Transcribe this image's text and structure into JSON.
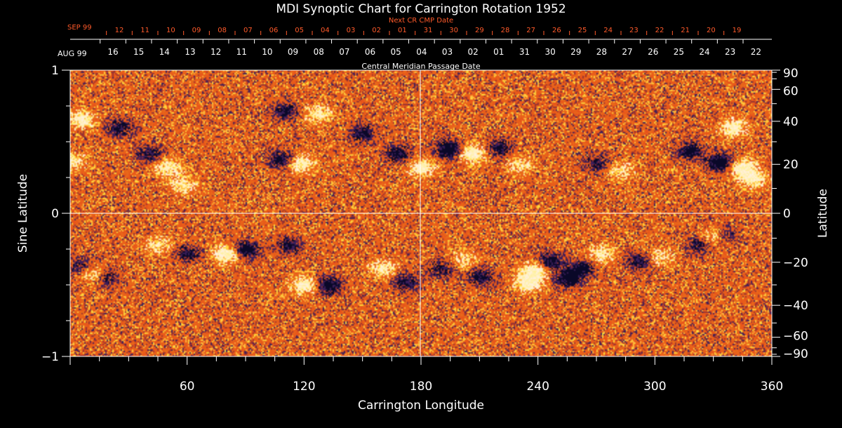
{
  "chart_data": {
    "type": "heatmap",
    "title": "MDI Synoptic Chart for Carrington Rotation 1952",
    "xlabel": "Carrington Longitude",
    "ylabel_left": "Sine Latitude",
    "ylabel_right": "Latitude",
    "xlim": [
      0,
      360
    ],
    "ylim": [
      -1,
      1
    ],
    "x_ticks": [
      60,
      120,
      180,
      240,
      300,
      360
    ],
    "y_ticks_left": [
      -1,
      0,
      1
    ],
    "y_ticks_left_labels": [
      "−1",
      "0",
      "1"
    ],
    "y_ticks_right": [
      90,
      60,
      40,
      20,
      0,
      -20,
      -40,
      -60,
      -90
    ],
    "y_ticks_right_labels": [
      "90",
      "60",
      "40",
      "20",
      "0",
      "−20",
      "−40",
      "−60",
      "−90"
    ],
    "grid_lines": {
      "longitude": 180,
      "sine_latitude": 0
    },
    "top_axis": {
      "title": "Central Meridian Passage Date",
      "start_label": "AUG 99",
      "dates": [
        "16",
        "15",
        "14",
        "13",
        "12",
        "11",
        "10",
        "09",
        "08",
        "07",
        "06",
        "05",
        "04",
        "03",
        "02",
        "01",
        "31",
        "30",
        "29",
        "28",
        "27",
        "26",
        "25",
        "24",
        "23",
        "22"
      ]
    },
    "next_axis": {
      "title": "Next CR CMP Date",
      "start_label": "SEP 99",
      "dates": [
        "12",
        "11",
        "10",
        "09",
        "08",
        "07",
        "06",
        "05",
        "04",
        "03",
        "02",
        "01",
        "31",
        "30",
        "29",
        "28",
        "27",
        "26",
        "25",
        "24",
        "23",
        "22",
        "21",
        "20",
        "19"
      ]
    },
    "colors": {
      "background": "#000000",
      "field_base": "#e8501a",
      "positive_polarity": "#fff5b0",
      "negative_polarity": "#101040",
      "next_axis_text": "#ff5a2a",
      "axis": "#ffffff"
    },
    "regions": [
      {
        "polarity": "positive",
        "lon": 5,
        "sinlat": 0.66,
        "strength": 1.0
      },
      {
        "polarity": "negative",
        "lon": 25,
        "sinlat": 0.6,
        "strength": 0.9
      },
      {
        "polarity": "positive",
        "lon": 0,
        "sinlat": 0.36,
        "strength": 0.9
      },
      {
        "polarity": "positive",
        "lon": 50,
        "sinlat": 0.32,
        "strength": 0.9
      },
      {
        "polarity": "positive",
        "lon": 58,
        "sinlat": 0.2,
        "strength": 0.8
      },
      {
        "polarity": "negative",
        "lon": 40,
        "sinlat": 0.42,
        "strength": 0.8
      },
      {
        "polarity": "negative",
        "lon": 110,
        "sinlat": 0.72,
        "strength": 0.9
      },
      {
        "polarity": "positive",
        "lon": 127,
        "sinlat": 0.7,
        "strength": 0.9
      },
      {
        "polarity": "negative",
        "lon": 108,
        "sinlat": 0.38,
        "strength": 1.0
      },
      {
        "polarity": "positive",
        "lon": 118,
        "sinlat": 0.35,
        "strength": 1.0
      },
      {
        "polarity": "negative",
        "lon": 150,
        "sinlat": 0.56,
        "strength": 0.9
      },
      {
        "polarity": "negative",
        "lon": 168,
        "sinlat": 0.42,
        "strength": 1.0
      },
      {
        "polarity": "positive",
        "lon": 180,
        "sinlat": 0.32,
        "strength": 1.0
      },
      {
        "polarity": "negative",
        "lon": 194,
        "sinlat": 0.45,
        "strength": 1.3
      },
      {
        "polarity": "positive",
        "lon": 206,
        "sinlat": 0.42,
        "strength": 1.2
      },
      {
        "polarity": "negative",
        "lon": 220,
        "sinlat": 0.46,
        "strength": 0.9
      },
      {
        "polarity": "positive",
        "lon": 230,
        "sinlat": 0.34,
        "strength": 0.7
      },
      {
        "polarity": "negative",
        "lon": 270,
        "sinlat": 0.35,
        "strength": 0.8
      },
      {
        "polarity": "positive",
        "lon": 282,
        "sinlat": 0.3,
        "strength": 0.7
      },
      {
        "polarity": "negative",
        "lon": 318,
        "sinlat": 0.44,
        "strength": 1.1
      },
      {
        "polarity": "positive",
        "lon": 340,
        "sinlat": 0.6,
        "strength": 1.0
      },
      {
        "polarity": "negative",
        "lon": 333,
        "sinlat": 0.36,
        "strength": 1.3
      },
      {
        "polarity": "positive",
        "lon": 345,
        "sinlat": 0.32,
        "strength": 1.2
      },
      {
        "polarity": "positive",
        "lon": 350,
        "sinlat": 0.24,
        "strength": 1.0
      },
      {
        "polarity": "positive",
        "lon": 80,
        "sinlat": -0.28,
        "strength": 1.2
      },
      {
        "polarity": "negative",
        "lon": 90,
        "sinlat": -0.25,
        "strength": 1.2
      },
      {
        "polarity": "negative",
        "lon": 60,
        "sinlat": -0.28,
        "strength": 0.9
      },
      {
        "polarity": "positive",
        "lon": 45,
        "sinlat": -0.22,
        "strength": 0.7
      },
      {
        "polarity": "negative",
        "lon": 112,
        "sinlat": -0.22,
        "strength": 0.8
      },
      {
        "polarity": "negative",
        "lon": 5,
        "sinlat": -0.36,
        "strength": 0.7
      },
      {
        "polarity": "positive",
        "lon": 12,
        "sinlat": -0.42,
        "strength": 0.8
      },
      {
        "polarity": "negative",
        "lon": 18,
        "sinlat": -0.44,
        "strength": 0.8
      },
      {
        "polarity": "positive",
        "lon": 120,
        "sinlat": -0.5,
        "strength": 1.1
      },
      {
        "polarity": "negative",
        "lon": 132,
        "sinlat": -0.5,
        "strength": 1.2
      },
      {
        "polarity": "positive",
        "lon": 160,
        "sinlat": -0.38,
        "strength": 0.8
      },
      {
        "polarity": "negative",
        "lon": 172,
        "sinlat": -0.48,
        "strength": 0.9
      },
      {
        "polarity": "negative",
        "lon": 190,
        "sinlat": -0.38,
        "strength": 0.8
      },
      {
        "polarity": "negative",
        "lon": 210,
        "sinlat": -0.44,
        "strength": 0.9
      },
      {
        "polarity": "positive",
        "lon": 202,
        "sinlat": -0.32,
        "strength": 0.6
      },
      {
        "polarity": "positive",
        "lon": 238,
        "sinlat": -0.4,
        "strength": 1.2
      },
      {
        "polarity": "positive",
        "lon": 235,
        "sinlat": -0.48,
        "strength": 1.2
      },
      {
        "polarity": "negative",
        "lon": 246,
        "sinlat": -0.33,
        "strength": 1.0
      },
      {
        "polarity": "negative",
        "lon": 255,
        "sinlat": -0.45,
        "strength": 1.2
      },
      {
        "polarity": "negative",
        "lon": 262,
        "sinlat": -0.38,
        "strength": 1.0
      },
      {
        "polarity": "positive",
        "lon": 272,
        "sinlat": -0.28,
        "strength": 0.8
      },
      {
        "polarity": "negative",
        "lon": 292,
        "sinlat": -0.33,
        "strength": 0.9
      },
      {
        "polarity": "positive",
        "lon": 302,
        "sinlat": -0.3,
        "strength": 0.7
      },
      {
        "polarity": "negative",
        "lon": 322,
        "sinlat": -0.22,
        "strength": 0.7
      },
      {
        "polarity": "positive",
        "lon": 330,
        "sinlat": -0.16,
        "strength": 0.7
      },
      {
        "polarity": "negative",
        "lon": 335,
        "sinlat": -0.15,
        "strength": 0.6
      }
    ]
  }
}
